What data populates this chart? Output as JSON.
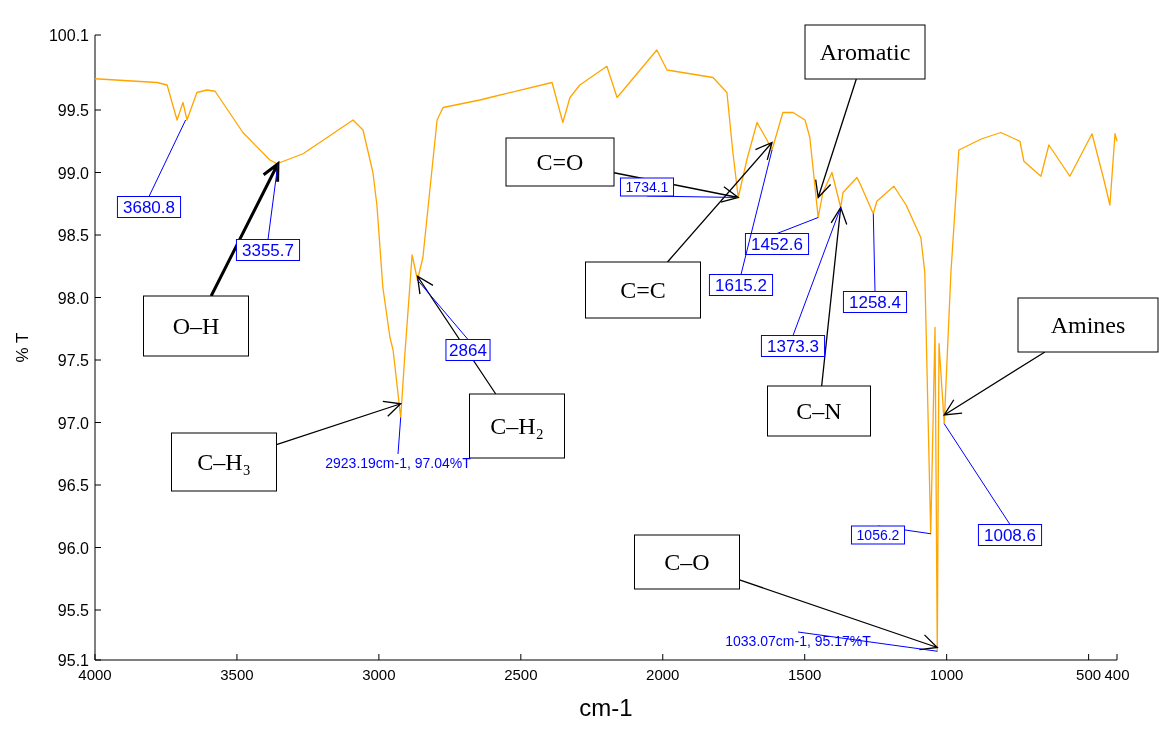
{
  "chart_data": {
    "type": "line",
    "xlabel": "cm-1",
    "ylabel": "% T",
    "xlim": [
      4000,
      400
    ],
    "xticks": [
      4000,
      3500,
      3000,
      2500,
      2000,
      1500,
      1000,
      500,
      400
    ],
    "ylim": [
      95.1,
      100.1
    ],
    "yticks": [
      95.1,
      95.5,
      {
        "value": 96,
        "label": "96.0"
      },
      96.5,
      {
        "value": 97,
        "label": "97.0"
      },
      97.5,
      {
        "value": 98,
        "label": "98.0"
      },
      98.5,
      {
        "value": 99,
        "label": "99.0"
      },
      99.5,
      100.1
    ],
    "grid": false,
    "marker": "none",
    "line_style": "solid",
    "series": [
      {
        "color": "#ffa500",
        "x": [
          4000,
          3782,
          3746,
          3711,
          3690,
          3676,
          3641,
          3606,
          3577,
          3479,
          3384,
          3359,
          3267,
          3091,
          3056,
          3021,
          3007,
          2986,
          2961,
          2950,
          2923.19,
          2908,
          2883,
          2864,
          2845,
          2795,
          2774,
          2644,
          2609,
          2390,
          2352,
          2327,
          2292,
          2197,
          2161,
          2021,
          1985,
          1823,
          1774,
          1753,
          1734.1,
          1704,
          1668,
          1633,
          1615.2,
          1577,
          1541,
          1499,
          1482,
          1452.6,
          1436,
          1404,
          1373.3,
          1365,
          1316,
          1305,
          1258.4,
          1246,
          1186,
          1143,
          1091,
          1077,
          1056.2,
          1041,
          1033.07,
          1027,
          1008.6,
          985,
          957,
          876,
          809,
          742,
          728,
          668,
          640,
          566,
          488,
          446,
          425,
          407,
          400
        ],
        "values": [
          99.75,
          99.72,
          99.7,
          99.42,
          99.56,
          99.42,
          99.64,
          99.66,
          99.65,
          99.32,
          99.1,
          99.07,
          99.15,
          99.42,
          99.34,
          99.0,
          98.74,
          98.08,
          97.68,
          97.58,
          97.04,
          97.56,
          98.34,
          98.14,
          98.32,
          99.42,
          99.52,
          99.58,
          99.6,
          99.72,
          99.4,
          99.6,
          99.7,
          99.85,
          99.6,
          99.98,
          99.82,
          99.76,
          99.64,
          99.16,
          98.8,
          99.1,
          99.4,
          99.26,
          99.18,
          99.48,
          99.48,
          99.42,
          99.28,
          98.64,
          98.84,
          99.0,
          98.72,
          98.84,
          98.96,
          98.91,
          98.67,
          98.77,
          98.89,
          98.74,
          98.48,
          98.2,
          96.11,
          97.76,
          95.17,
          97.63,
          96.99,
          98.2,
          99.18,
          99.27,
          99.32,
          99.25,
          99.09,
          98.97,
          99.22,
          98.97,
          99.31,
          98.94,
          98.74,
          99.31,
          99.25
        ]
      }
    ],
    "annotations": [
      {
        "text": "3680.8",
        "x": 3680.8,
        "y": 99.42
      },
      {
        "text": "3355.7",
        "x": 3355.7,
        "y": 99.07
      },
      {
        "text": "2864",
        "x": 2864,
        "y": 98.14
      },
      {
        "text": "2923.19cm-1, 97.04%T",
        "x": 2923.19,
        "y": 97.04
      },
      {
        "text": "1734.1",
        "x": 1734.1,
        "y": 98.8
      },
      {
        "text": "1615.2",
        "x": 1615.2,
        "y": 99.18
      },
      {
        "text": "1452.6",
        "x": 1452.6,
        "y": 98.64
      },
      {
        "text": "1373.3",
        "x": 1373.3,
        "y": 98.72
      },
      {
        "text": "1258.4",
        "x": 1258.4,
        "y": 98.67
      },
      {
        "text": "1056.2",
        "x": 1056.2,
        "y": 96.11
      },
      {
        "text": "1008.6",
        "x": 1008.6,
        "y": 96.99
      },
      {
        "text": "1033.07cm-1, 95.17%T",
        "x": 1033.07,
        "y": 95.17
      },
      {
        "text": "O–H",
        "x": 3355.7,
        "y": 99.07
      },
      {
        "text": "C–H₃",
        "x": 2923.19,
        "y": 97.15
      },
      {
        "text": "C–H₂",
        "x": 2864,
        "y": 98.17
      },
      {
        "text": "C=O",
        "x": 1734.1,
        "y": 98.8
      },
      {
        "text": "C=C",
        "x": 1615.2,
        "y": 99.24
      },
      {
        "text": "Aromatic",
        "x": 1452.6,
        "y": 98.8
      },
      {
        "text": "C–N",
        "x": 1373.3,
        "y": 98.72
      },
      {
        "text": "Amines",
        "x": 1008.6,
        "y": 97.06
      },
      {
        "text": "C–O",
        "x": 1033.07,
        "y": 95.2
      }
    ]
  }
}
